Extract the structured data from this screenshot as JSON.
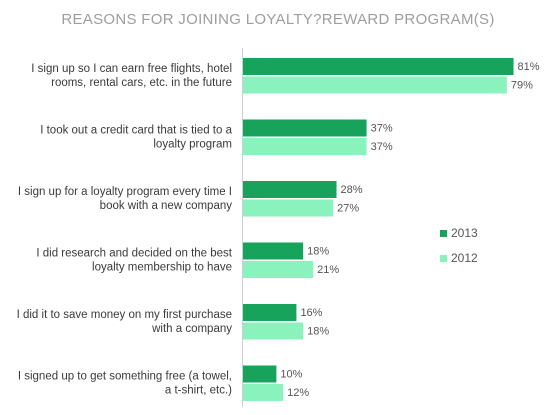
{
  "chart_data": {
    "type": "bar",
    "orientation": "horizontal",
    "title": "REASONS FOR JOINING LOYALTY?REWARD PROGRAM(S)",
    "categories": [
      [
        "I sign up so I can earn free flights, hotel",
        "rooms, rental cars, etc. in the future"
      ],
      [
        "I took out a credit card that is tied to a",
        "loyalty program"
      ],
      [
        "I sign up for a loyalty program every time I",
        "book with a new company"
      ],
      [
        "I did research and decided on the best",
        "loyalty membership to have"
      ],
      [
        "I did it to save money on my first purchase",
        "with a company"
      ],
      [
        "I signed up to get something free (a towel,",
        "a t-shirt, etc.)"
      ]
    ],
    "series": [
      {
        "name": "2013",
        "color": "#17a35b",
        "values": [
          81,
          37,
          28,
          18,
          16,
          10
        ]
      },
      {
        "name": "2012",
        "color": "#8af2bd",
        "values": [
          79,
          37,
          27,
          21,
          18,
          12
        ]
      }
    ],
    "value_suffix": "%",
    "legend_position": "right",
    "grid": false
  }
}
